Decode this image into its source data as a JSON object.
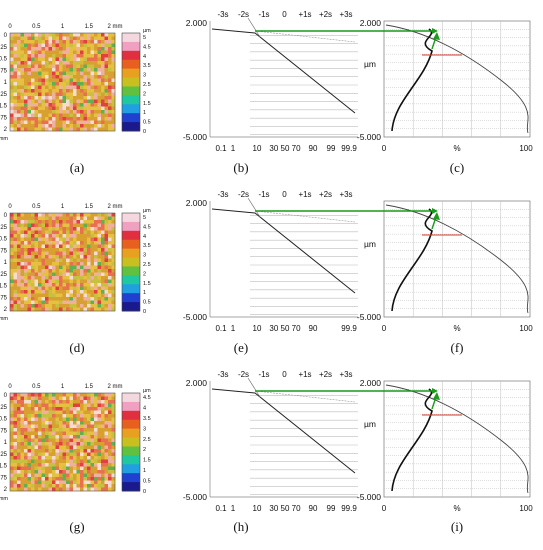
{
  "figure": {
    "rows": [
      {
        "map": {
          "x_ticks": [
            "0",
            "0.5",
            "1",
            "1.5",
            "2 mm"
          ],
          "y_ticks": [
            "0",
            "0.25",
            "0.5",
            "0.75",
            "1",
            "1.25",
            "1.5",
            "1.75",
            "2"
          ],
          "y_unit": "mm",
          "colorbar_unit": "µm",
          "colorbar_ticks": [
            "5",
            "4.5",
            "4",
            "3.5",
            "3",
            "2.5",
            "2",
            "1.5",
            "1",
            "0.5",
            "0"
          ],
          "caption": "(a)"
        },
        "probability": {
          "sigma_labels": [
            "-3s",
            "-2s",
            "-1s",
            "0",
            "+1s",
            "+2s",
            "+3s"
          ],
          "y_top": "2.000",
          "y_bottom": "-5.000",
          "y_unit": "µm",
          "x_ticks": [
            "0.1",
            "1",
            "10",
            "30 50 70",
            "90",
            "99",
            "99.9"
          ],
          "caption": "(b)"
        },
        "bearing": {
          "y_top": "2.000",
          "y_bottom": "-5.000",
          "y_unit": "µm",
          "x_ticks": [
            "0",
            "%",
            "100"
          ],
          "caption": "(c)"
        }
      },
      {
        "map": {
          "x_ticks": [
            "0",
            "0.5",
            "1",
            "1.5",
            "2 mm"
          ],
          "y_ticks": [
            "0",
            "0.25",
            "0.5",
            "0.75",
            "1",
            "1.25",
            "1.5",
            "1.75",
            "2"
          ],
          "y_unit": "mm",
          "colorbar_unit": "µm",
          "colorbar_ticks": [
            "5",
            "4.5",
            "4",
            "3.5",
            "3",
            "2.5",
            "2",
            "1.5",
            "1",
            "0.5",
            "0"
          ],
          "caption": "(d)"
        },
        "probability": {
          "sigma_labels": [
            "-3s",
            "-2s",
            "-1s",
            "0",
            "+1s",
            "+2s",
            "+3s"
          ],
          "y_top": "2.000",
          "y_bottom": "-5.000",
          "y_unit": "µm",
          "x_ticks": [
            "0.1",
            "1",
            "10",
            "30 50 70",
            "90",
            "99.9"
          ],
          "caption": "(e)"
        },
        "bearing": {
          "y_top": "",
          "y_bottom": "-5.000",
          "y_unit": "µm",
          "x_ticks": [
            "0",
            "%",
            "100"
          ],
          "caption": "(f)"
        }
      },
      {
        "map": {
          "x_ticks": [
            "0",
            "0.5",
            "1",
            "1.5",
            "2 mm"
          ],
          "y_ticks": [
            "0",
            "0.25",
            "0.5",
            "0.75",
            "1",
            "1.25",
            "1.5",
            "1.75",
            "2"
          ],
          "y_unit": "mm",
          "colorbar_unit": "µm",
          "colorbar_ticks": [
            "4.5",
            "4",
            "3.5",
            "3",
            "2.5",
            "2",
            "1.5",
            "1",
            "0.5",
            "0"
          ],
          "caption": "(g)"
        },
        "probability": {
          "sigma_labels": [
            "-3s",
            "-2s",
            "-1s",
            "0",
            "+1s",
            "+2s",
            "+3s"
          ],
          "y_top": "2.000",
          "y_bottom": "-5.000",
          "y_unit": "µm",
          "x_ticks": [
            "0.1",
            "1",
            "10",
            "30 50 70",
            "90",
            "99",
            "99.9"
          ],
          "caption": "(h)"
        },
        "bearing": {
          "y_top": "2.000",
          "y_bottom": "-5.000",
          "y_unit": "µm",
          "x_ticks": [
            "0",
            "%",
            "100"
          ],
          "caption": "(i)"
        }
      }
    ],
    "colors": {
      "arrow": "#1a9a1a",
      "marker_line": "#e23a2a",
      "curve": "#222222",
      "grid": "#bdbdbd",
      "colormap": [
        "#1a1a8c",
        "#2040d0",
        "#20a0e0",
        "#20c8a0",
        "#60c040",
        "#c8c020",
        "#e8a020",
        "#e86020",
        "#e03040",
        "#f0a0c0",
        "#f4d8e0"
      ]
    }
  }
}
